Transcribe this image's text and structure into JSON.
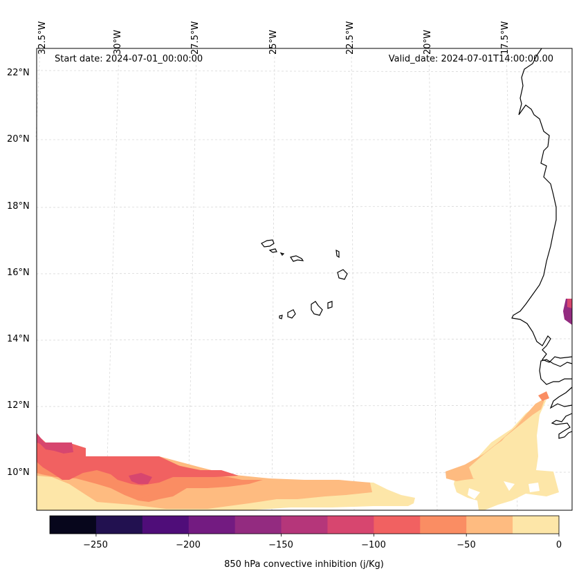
{
  "header": {
    "start_label": "Start date: 2024-07-01_00:00:00",
    "valid_label": "Valid_date: 2024-07-01T14:00:00.00"
  },
  "lon_labels": [
    "32.5°W",
    "30°W",
    "27.5°W",
    "25°W",
    "22.5°W",
    "20°W",
    "17.5°W"
  ],
  "lat_labels": [
    "22°N",
    "20°N",
    "18°N",
    "16°N",
    "14°N",
    "12°N",
    "10°N"
  ],
  "colorbar": {
    "title": "850 hPa convective inhibition (j/Kg)",
    "ticks": [
      "−250",
      "−200",
      "−150",
      "−100",
      "−50",
      "0"
    ],
    "levels": [
      -275,
      -250,
      -225,
      -200,
      -175,
      -150,
      -125,
      -100,
      -75,
      -50,
      -25,
      0
    ],
    "colors": [
      "#07061c",
      "#221150",
      "#4f0d79",
      "#731b81",
      "#932b80",
      "#b5367a",
      "#d7466f",
      "#f16161",
      "#fa8d63",
      "#febb80",
      "#fde6a8"
    ]
  }
}
